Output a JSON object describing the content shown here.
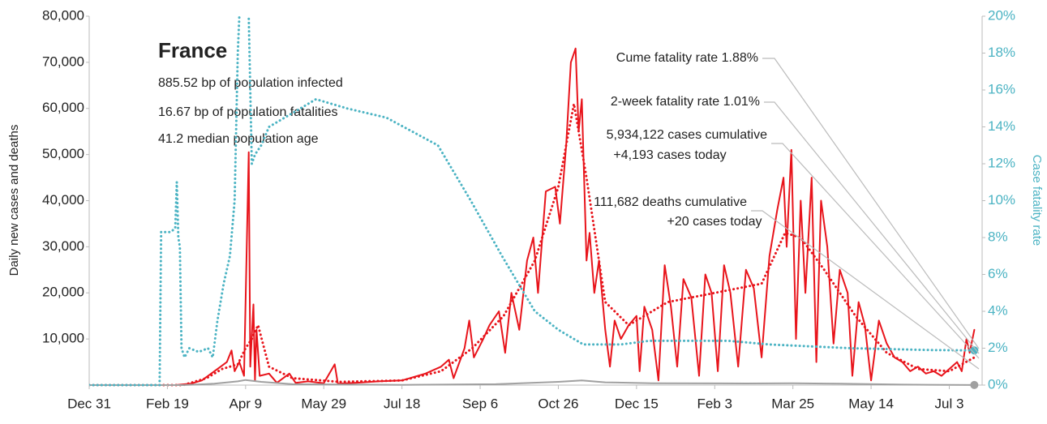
{
  "chart_data": {
    "type": "line",
    "ylabel": "Daily new cases and deaths",
    "y2label": "Case fatality rate",
    "info": {
      "title": "France",
      "lines": [
        "885.52 bp of population infected",
        "16.67 bp of population fatalities",
        "41.2 median population age"
      ]
    },
    "annotations": [
      {
        "lines": [
          "Cume fatality rate 1.88%"
        ]
      },
      {
        "lines": [
          "2-week fatality rate 1.01%"
        ]
      },
      {
        "lines": [
          "5,934,122 cases cumulative",
          "+4,193 cases today"
        ]
      },
      {
        "lines": [
          "111,682 deaths cumulative",
          "+20 cases today"
        ]
      }
    ],
    "xlim": [
      0,
      571
    ],
    "xticks": [
      {
        "value": 0,
        "label": "Dec 31"
      },
      {
        "value": 50,
        "label": "Feb 19"
      },
      {
        "value": 100,
        "label": "Apr 9"
      },
      {
        "value": 150,
        "label": "May 29"
      },
      {
        "value": 200,
        "label": "Jul 18"
      },
      {
        "value": 250,
        "label": "Sep 6"
      },
      {
        "value": 300,
        "label": "Oct 26"
      },
      {
        "value": 350,
        "label": "Dec 15"
      },
      {
        "value": 400,
        "label": "Feb 3"
      },
      {
        "value": 450,
        "label": "Mar 25"
      },
      {
        "value": 500,
        "label": "May 14"
      },
      {
        "value": 550,
        "label": "Jul 3"
      }
    ],
    "ylim": [
      0,
      80000
    ],
    "yticks": [
      {
        "value": 10000,
        "label": "10,000"
      },
      {
        "value": 20000,
        "label": "20,000"
      },
      {
        "value": 30000,
        "label": "30,000"
      },
      {
        "value": 40000,
        "label": "40,000"
      },
      {
        "value": 50000,
        "label": "50,000"
      },
      {
        "value": 60000,
        "label": "60,000"
      },
      {
        "value": 70000,
        "label": "70,000"
      },
      {
        "value": 80000,
        "label": "80,000"
      }
    ],
    "y2lim": [
      0,
      20
    ],
    "y2ticks": [
      {
        "value": 0,
        "label": "0%"
      },
      {
        "value": 2,
        "label": "2%"
      },
      {
        "value": 4,
        "label": "4%"
      },
      {
        "value": 6,
        "label": "6%"
      },
      {
        "value": 8,
        "label": "8%"
      },
      {
        "value": 10,
        "label": "10%"
      },
      {
        "value": 12,
        "label": "12%"
      },
      {
        "value": 14,
        "label": "14%"
      },
      {
        "value": 16,
        "label": "16%"
      },
      {
        "value": 18,
        "label": "18%"
      },
      {
        "value": 20,
        "label": "20%"
      }
    ],
    "series": [
      {
        "color": "#e8141b",
        "style": "solid",
        "x": [
          0,
          55,
          65,
          72,
          78,
          84,
          88,
          91,
          93,
          96,
          99,
          102,
          103,
          105,
          106,
          107,
          109,
          115,
          120,
          128,
          132,
          140,
          150,
          157,
          159,
          170,
          185,
          200,
          215,
          225,
          230,
          233,
          240,
          243,
          246,
          252,
          256,
          262,
          266,
          270,
          275,
          280,
          284,
          287,
          292,
          298,
          301,
          305,
          308,
          311,
          313,
          315,
          318,
          320,
          323,
          326,
          330,
          333,
          336,
          340,
          345,
          350,
          352,
          355,
          360,
          364,
          368,
          372,
          376,
          380,
          385,
          390,
          394,
          398,
          402,
          406,
          410,
          415,
          420,
          425,
          430,
          435,
          440,
          444,
          446,
          449,
          452,
          455,
          458,
          462,
          465,
          468,
          472,
          476,
          480,
          485,
          488,
          492,
          496,
          500,
          505,
          510,
          515,
          520,
          525,
          530,
          535,
          540,
          545,
          550,
          555,
          558,
          561,
          563,
          566
        ],
        "values": [
          0,
          0,
          300,
          1000,
          2500,
          4000,
          5000,
          7500,
          3000,
          5000,
          2000,
          50500,
          4000,
          17500,
          1000,
          12000,
          2000,
          2500,
          500,
          2500,
          500,
          800,
          400,
          4500,
          300,
          500,
          800,
          1000,
          2500,
          4000,
          5500,
          1500,
          8000,
          14000,
          6000,
          10000,
          13000,
          16000,
          7000,
          20000,
          12000,
          27000,
          32000,
          20000,
          42000,
          43000,
          35000,
          52000,
          70000,
          73000,
          55000,
          62000,
          27000,
          33000,
          20000,
          27000,
          12000,
          4000,
          14000,
          10000,
          13000,
          15000,
          3000,
          17000,
          12000,
          1000,
          26000,
          17000,
          4000,
          23000,
          19000,
          2000,
          24000,
          20000,
          3000,
          26000,
          20000,
          4000,
          25000,
          21000,
          6000,
          28000,
          38000,
          45000,
          30000,
          51000,
          10000,
          40000,
          20000,
          45000,
          5000,
          40000,
          30000,
          9000,
          25000,
          20000,
          2000,
          18000,
          13000,
          1000,
          14000,
          9000,
          6000,
          5000,
          3000,
          4000,
          2500,
          3000,
          2000,
          3500,
          5000,
          3000,
          10000,
          7000,
          12000
        ]
      },
      {
        "color": "#e8141b",
        "style": "dotted",
        "x": [
          0,
          60,
          75,
          85,
          95,
          100,
          104,
          108,
          115,
          130,
          160,
          200,
          225,
          245,
          265,
          285,
          300,
          310,
          318,
          330,
          345,
          370,
          400,
          430,
          445,
          455,
          470,
          490,
          510,
          530,
          550,
          566
        ],
        "values": [
          0,
          0,
          1500,
          3500,
          4500,
          8000,
          10000,
          13000,
          4000,
          1500,
          700,
          1000,
          3000,
          8000,
          15000,
          27000,
          43000,
          61000,
          45000,
          18000,
          13000,
          18000,
          20000,
          22000,
          33000,
          32000,
          25000,
          15000,
          7000,
          3500,
          3000,
          6000
        ]
      },
      {
        "color": "#a0a0a0",
        "style": "solid",
        "x": [
          0,
          60,
          80,
          95,
          100,
          110,
          130,
          200,
          260,
          300,
          315,
          330,
          360,
          420,
          450,
          480,
          520,
          566
        ],
        "values": [
          0,
          0,
          300,
          800,
          1100,
          700,
          200,
          50,
          200,
          700,
          1000,
          600,
          400,
          350,
          400,
          300,
          100,
          20
        ]
      },
      {
        "color": "#4bb3c3",
        "style": "dotted",
        "axis": "y2",
        "x": [
          0,
          45,
          46,
          52,
          55,
          56,
          57,
          58,
          59,
          61,
          64,
          70,
          76,
          79,
          82,
          86,
          90,
          93,
          95,
          97,
          100,
          102,
          104,
          106,
          110,
          115,
          125,
          135,
          145,
          165,
          190,
          223,
          244,
          264,
          285,
          300,
          316,
          340,
          358,
          409,
          435,
          487,
          539,
          566
        ],
        "values": [
          0,
          0,
          8.3,
          8.3,
          8.5,
          11,
          8,
          7.5,
          2,
          1.5,
          2,
          1.8,
          2,
          1.5,
          3.5,
          5.5,
          7,
          10,
          18,
          22,
          22,
          20,
          12,
          12.5,
          13,
          14,
          14.5,
          15,
          15.5,
          15,
          14.5,
          13,
          10,
          7,
          4,
          3,
          2.2,
          2.2,
          2.4,
          2.4,
          2.2,
          2,
          1.9,
          1.88
        ]
      }
    ]
  }
}
